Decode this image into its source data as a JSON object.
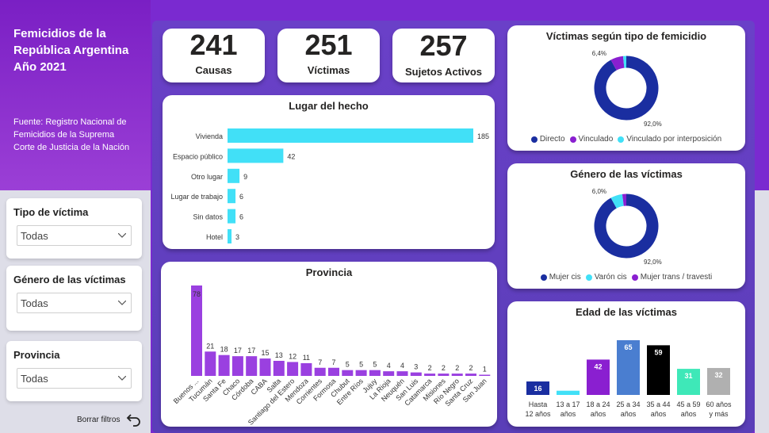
{
  "header": {
    "title_lines": [
      "Femicidios de la",
      "República Argentina",
      "Año 2021"
    ],
    "source_lines": [
      "Fuente: Registro Nacional de",
      "Femicidios de la Suprema",
      "Corte de Justicia de la Nación"
    ]
  },
  "filters": [
    {
      "label": "Tipo de víctima",
      "value": "Todas"
    },
    {
      "label": "Género de las víctimas",
      "value": "Todas"
    },
    {
      "label": "Provincia",
      "value": "Todas"
    }
  ],
  "clear_filters": "Borrar filtros",
  "kpis": [
    {
      "value": "241",
      "label": "Causas"
    },
    {
      "value": "251",
      "label": "Víctimas"
    },
    {
      "value": "257",
      "label": "Sujetos Activos"
    }
  ],
  "chart_data": [
    {
      "type": "bar",
      "orientation": "horizontal",
      "title": "Lugar del hecho",
      "categories": [
        "Vivienda",
        "Espacio público",
        "Otro lugar",
        "Lugar de trabajo",
        "Sin datos",
        "Hotel"
      ],
      "values": [
        185,
        42,
        9,
        6,
        6,
        3
      ],
      "color": "#41e0f7"
    },
    {
      "type": "bar",
      "title": "Provincia",
      "categories": [
        "Buenos ...",
        "Tucumán",
        "Santa Fe",
        "Chaco",
        "Córdoba",
        "CABA",
        "Salta",
        "Santiago del Estero",
        "Mendoza",
        "Corrientes",
        "Formosa",
        "Chubut",
        "Entre Ríos",
        "Jujuy",
        "La Rioja",
        "Neuquén",
        "San Luis",
        "Catamarca",
        "Misiones",
        "Río Negro",
        "Santa Cruz",
        "San Juan"
      ],
      "values": [
        78,
        21,
        18,
        17,
        17,
        15,
        13,
        12,
        11,
        7,
        7,
        5,
        5,
        5,
        4,
        4,
        3,
        2,
        2,
        2,
        2,
        1
      ],
      "color": "#9a40e0"
    },
    {
      "type": "pie",
      "title": "Víctimas según tipo de femicidio",
      "categories": [
        "Directo",
        "Vinculado",
        "Vinculado por interposición"
      ],
      "values": [
        92.0,
        6.4,
        1.6
      ],
      "labels": [
        "92,0%",
        "6,4%",
        ""
      ],
      "colors": [
        "#1a2ea0",
        "#8a1fd0",
        "#41e0f7"
      ]
    },
    {
      "type": "pie",
      "title": "Género de las víctimas",
      "categories": [
        "Mujer cis",
        "Varón cis",
        "Mujer trans / travesti"
      ],
      "values": [
        92.0,
        6.0,
        2.0
      ],
      "labels": [
        "92,0%",
        "6,0%",
        ""
      ],
      "colors": [
        "#1a2ea0",
        "#41e0f7",
        "#8a1fd0"
      ]
    },
    {
      "type": "bar",
      "title": "Edad de las víctimas",
      "categories": [
        "Hasta 12 años",
        "13 a 17 años",
        "18 a 24 años",
        "25 a 34 años",
        "35 a 44 años",
        "45 a 59 años",
        "60 años y más"
      ],
      "category_lines": [
        [
          "Hasta",
          "12 años"
        ],
        [
          "13 a 17",
          "años"
        ],
        [
          "18 a 24",
          "años"
        ],
        [
          "25 a 34",
          "años"
        ],
        [
          "35 a 44",
          "años"
        ],
        [
          "45 a 59",
          "años"
        ],
        [
          "60 años",
          "y más"
        ]
      ],
      "values": [
        16,
        5,
        42,
        65,
        59,
        31,
        32
      ],
      "labels": [
        "16",
        "",
        "42",
        "65",
        "59",
        "31",
        "32"
      ],
      "colors": [
        "#1a2ea0",
        "#41e0f7",
        "#8a1fd0",
        "#4a7ed0",
        "#000000",
        "#3ee8b8",
        "#b0b0b0"
      ]
    }
  ],
  "colors": {
    "accent_purple": "#7a2ad0",
    "panel": "#5a3eb8",
    "cyan": "#41e0f7",
    "navy": "#1a2ea0"
  }
}
